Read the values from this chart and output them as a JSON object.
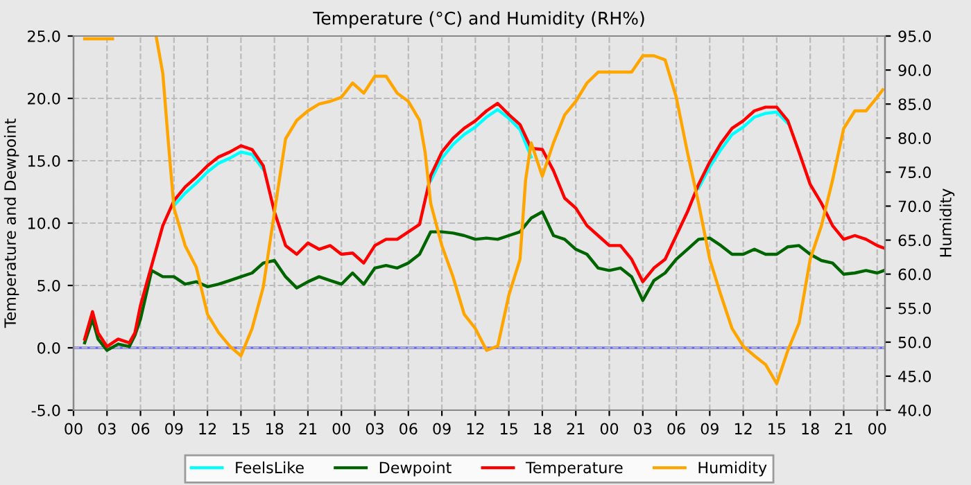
{
  "chart_data": {
    "type": "line",
    "title": "Temperature (°C) and Humidity (RH%)",
    "ylabel": "Temperature and Dewpoint",
    "y2label": "Humidity",
    "x": [
      1,
      1.7,
      2.2,
      3,
      4,
      5,
      5.5,
      6,
      7,
      8,
      9,
      10,
      11,
      12,
      13,
      14,
      15,
      16,
      17,
      18,
      19,
      20,
      21,
      22,
      23,
      24,
      25,
      26,
      27,
      28,
      29,
      30,
      31,
      32,
      33,
      34,
      35,
      36,
      37,
      38,
      39,
      40,
      41,
      42,
      43,
      44,
      45,
      46,
      47,
      48,
      49,
      50,
      51,
      52,
      53,
      54,
      55,
      56,
      57,
      58,
      59,
      60,
      61,
      62,
      63,
      64,
      65,
      66,
      67,
      68,
      69,
      70,
      71,
      72,
      72.6
    ],
    "series": [
      {
        "name": "FeelsLike",
        "color": "#00ffff",
        "values": [
          null,
          null,
          null,
          null,
          null,
          null,
          null,
          null,
          null,
          null,
          11.4,
          12.4,
          13.2,
          14.1,
          14.8,
          15.2,
          15.7,
          15.5,
          14.3,
          null,
          null,
          null,
          null,
          null,
          null,
          null,
          null,
          null,
          null,
          null,
          null,
          null,
          null,
          13.4,
          15.2,
          16.3,
          17.1,
          17.7,
          18.5,
          19.1,
          18.4,
          17.5,
          15.3,
          null,
          null,
          null,
          null,
          null,
          null,
          null,
          null,
          null,
          null,
          null,
          null,
          null,
          null,
          12.8,
          14.5,
          15.9,
          17.1,
          17.7,
          18.5,
          18.8,
          18.9,
          18.0,
          null,
          null,
          null,
          null,
          null,
          null,
          null,
          null,
          null
        ]
      },
      {
        "name": "Dewpoint",
        "color": "#006400",
        "values": [
          0.4,
          2.3,
          0.7,
          -0.2,
          0.3,
          0.1,
          1.0,
          2.3,
          6.2,
          5.7,
          5.7,
          5.1,
          5.3,
          4.9,
          5.1,
          5.4,
          5.7,
          6.0,
          6.8,
          7.0,
          5.7,
          4.8,
          5.3,
          5.7,
          5.4,
          5.1,
          6.0,
          5.1,
          6.4,
          6.6,
          6.4,
          6.8,
          7.5,
          9.3,
          9.3,
          9.2,
          9.0,
          8.7,
          8.8,
          8.7,
          9.0,
          9.3,
          10.4,
          10.9,
          9.0,
          8.7,
          7.9,
          7.5,
          6.4,
          6.2,
          6.4,
          5.7,
          3.8,
          5.4,
          6.0,
          7.1,
          7.9,
          8.7,
          8.8,
          8.2,
          7.5,
          7.5,
          7.9,
          7.5,
          7.5,
          8.1,
          8.2,
          7.5,
          7.0,
          6.8,
          5.9,
          6.0,
          6.2,
          6.0,
          6.2
        ]
      },
      {
        "name": "Temperature",
        "color": "#ff0000",
        "values": [
          0.7,
          2.9,
          1.2,
          0.1,
          0.7,
          0.4,
          1.2,
          3.4,
          6.6,
          9.8,
          11.8,
          12.9,
          13.7,
          14.6,
          15.3,
          15.7,
          16.2,
          15.9,
          14.6,
          10.9,
          8.2,
          7.5,
          8.4,
          7.9,
          8.2,
          7.5,
          7.6,
          6.8,
          8.2,
          8.7,
          8.7,
          9.3,
          9.9,
          13.8,
          15.7,
          16.8,
          17.6,
          18.2,
          19.0,
          19.6,
          18.7,
          17.9,
          16.0,
          15.9,
          14.2,
          12.0,
          11.2,
          9.8,
          9.0,
          8.2,
          8.2,
          7.1,
          5.3,
          6.4,
          7.1,
          9.0,
          10.9,
          13.1,
          14.9,
          16.4,
          17.6,
          18.2,
          19.0,
          19.3,
          19.3,
          18.2,
          15.7,
          13.1,
          11.6,
          9.8,
          8.7,
          9.0,
          8.7,
          8.2,
          8.0
        ]
      },
      {
        "name": "Humidity",
        "color": "#ffa500",
        "axis": "y2",
        "x": [
          1,
          3.5,
          5.5,
          7.4,
          8,
          8.5,
          9,
          10,
          11,
          12,
          13,
          14,
          15,
          16,
          17,
          18,
          19,
          20,
          21,
          22,
          23,
          24,
          25,
          26,
          27,
          28,
          29,
          30,
          31,
          31.5,
          32,
          33,
          34,
          35,
          36,
          37,
          38,
          39,
          40,
          40.5,
          41,
          42,
          43,
          44,
          45,
          46,
          47,
          48,
          49,
          50,
          51,
          52,
          53,
          54,
          55,
          56,
          57,
          58,
          59,
          60,
          61,
          62,
          63,
          64,
          65,
          66,
          67,
          68,
          69,
          70,
          71,
          72,
          72.5
        ],
        "values": [
          94.6,
          94.6,
          null,
          95.0,
          89.5,
          79.3,
          69.7,
          64.2,
          61.0,
          54.1,
          51.4,
          49.4,
          48.0,
          52.0,
          58.1,
          69.1,
          79.9,
          82.6,
          84.0,
          85.0,
          85.4,
          86.0,
          88.1,
          86.6,
          89.1,
          89.1,
          86.6,
          85.4,
          82.6,
          77.9,
          70.4,
          64.2,
          59.6,
          54.1,
          52.0,
          48.8,
          49.4,
          56.9,
          62.2,
          73.8,
          79.3,
          74.4,
          79.3,
          83.4,
          85.4,
          88.1,
          89.7,
          89.7,
          89.7,
          89.7,
          92.1,
          92.1,
          91.5,
          86.0,
          77.9,
          70.4,
          62.2,
          56.9,
          52.0,
          49.4,
          48.0,
          46.7,
          43.9,
          48.8,
          52.8,
          62.2,
          67.1,
          73.8,
          81.4,
          84.0,
          84.0,
          86.0,
          87.1
        ]
      }
    ],
    "xlim": [
      0,
      72.7
    ],
    "xticks": [
      {
        "value": 0,
        "label": "00"
      },
      {
        "value": 3,
        "label": "03"
      },
      {
        "value": 6,
        "label": "06"
      },
      {
        "value": 9,
        "label": "09"
      },
      {
        "value": 12,
        "label": "12"
      },
      {
        "value": 15,
        "label": "15"
      },
      {
        "value": 18,
        "label": "18"
      },
      {
        "value": 21,
        "label": "21"
      },
      {
        "value": 24,
        "label": "00"
      },
      {
        "value": 27,
        "label": "03"
      },
      {
        "value": 30,
        "label": "06"
      },
      {
        "value": 33,
        "label": "09"
      },
      {
        "value": 36,
        "label": "12"
      },
      {
        "value": 39,
        "label": "15"
      },
      {
        "value": 42,
        "label": "18"
      },
      {
        "value": 45,
        "label": "21"
      },
      {
        "value": 48,
        "label": "00"
      },
      {
        "value": 51,
        "label": "03"
      },
      {
        "value": 54,
        "label": "06"
      },
      {
        "value": 57,
        "label": "09"
      },
      {
        "value": 60,
        "label": "12"
      },
      {
        "value": 63,
        "label": "15"
      },
      {
        "value": 66,
        "label": "18"
      },
      {
        "value": 69,
        "label": "21"
      },
      {
        "value": 72,
        "label": "00"
      }
    ],
    "ylim": [
      -5,
      25
    ],
    "yticks": [
      {
        "value": -5,
        "label": "-5.0"
      },
      {
        "value": 0,
        "label": "0.0"
      },
      {
        "value": 5,
        "label": "5.0"
      },
      {
        "value": 10,
        "label": "10.0"
      },
      {
        "value": 15,
        "label": "15.0"
      },
      {
        "value": 20,
        "label": "20.0"
      },
      {
        "value": 25,
        "label": "25.0"
      }
    ],
    "y2lim": [
      40,
      95
    ],
    "y2ticks": [
      {
        "value": 40,
        "label": "40.0"
      },
      {
        "value": 45,
        "label": "45.0"
      },
      {
        "value": 50,
        "label": "50.0"
      },
      {
        "value": 55,
        "label": "55.0"
      },
      {
        "value": 60,
        "label": "60.0"
      },
      {
        "value": 65,
        "label": "65.0"
      },
      {
        "value": 70,
        "label": "70.0"
      },
      {
        "value": 75,
        "label": "75.0"
      },
      {
        "value": 80,
        "label": "80.0"
      },
      {
        "value": 85,
        "label": "85.0"
      },
      {
        "value": 90,
        "label": "90.0"
      },
      {
        "value": 95,
        "label": "95.0"
      }
    ],
    "ref_lines": [
      {
        "axis": "y",
        "value": 0,
        "color": "#6a6aee"
      }
    ],
    "grid": true,
    "legend": "bottom",
    "marker": "none",
    "line_style": "solid"
  }
}
